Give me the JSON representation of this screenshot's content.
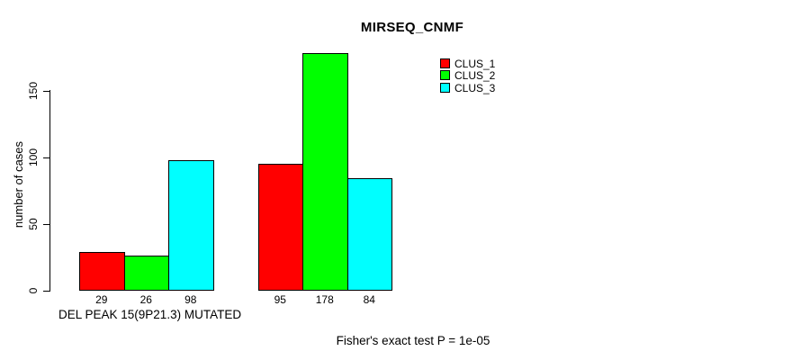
{
  "chart_data": {
    "type": "bar",
    "title": "MIRSEQ_CNMF",
    "ylabel": "number of cases",
    "xlabel": "DEL PEAK 15(9P21.3) MUTATED",
    "annotation": "Fisher's exact test P = 1e-05",
    "yticks": [
      0,
      50,
      100,
      150
    ],
    "grid": false,
    "n_groups": 2,
    "series": [
      {
        "name": "CLUS_1",
        "color": "#ff0000",
        "values": [
          29,
          95
        ]
      },
      {
        "name": "CLUS_2",
        "color": "#00ff00",
        "values": [
          26,
          178
        ]
      },
      {
        "name": "CLUS_3",
        "color": "#00ffff",
        "values": [
          98,
          84
        ]
      }
    ],
    "bar_labels": [
      "29",
      "26",
      "98",
      "95",
      "178",
      "84"
    ],
    "legend": {
      "position": "top-right",
      "entries": [
        {
          "label": "CLUS_1",
          "color": "#ff0000"
        },
        {
          "label": "CLUS_2",
          "color": "#00ff00"
        },
        {
          "label": "CLUS_3",
          "color": "#00ffff"
        }
      ]
    },
    "axis_color": "#000000",
    "background_color": "#ffffff"
  }
}
